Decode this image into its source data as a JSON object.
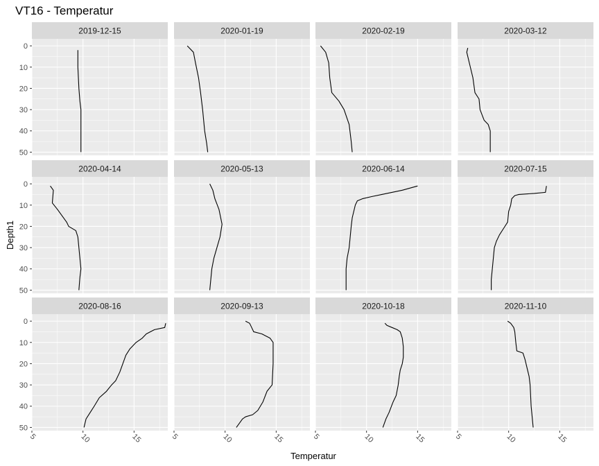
{
  "chart_data": {
    "type": "line",
    "title": "VT16  -  Temperatur",
    "xlabel": "Temperatur",
    "ylabel": "Depth1",
    "xlim": [
      5,
      18.3
    ],
    "ylim": [
      51.5,
      -3.3
    ],
    "y_reversed": true,
    "x_ticks": [
      5,
      10,
      15
    ],
    "x_tick_labels": [
      "5",
      "10",
      "15"
    ],
    "y_ticks": [
      0,
      10,
      20,
      30,
      40,
      50
    ],
    "y_tick_labels": [
      "0",
      "10",
      "20",
      "30",
      "40",
      "50"
    ],
    "grid": true,
    "legend": "none",
    "layout": {
      "rows": 3,
      "cols": 4
    },
    "panels": [
      {
        "label": "2019-12-15",
        "series": [
          {
            "points": [
              [
                9.5,
                2
              ],
              [
                9.5,
                10
              ],
              [
                9.6,
                20
              ],
              [
                9.7,
                26
              ],
              [
                9.8,
                30
              ],
              [
                9.8,
                40
              ],
              [
                9.8,
                50
              ]
            ]
          }
        ]
      },
      {
        "label": "2020-01-19",
        "series": [
          {
            "points": [
              [
                6.3,
                0
              ],
              [
                6.9,
                3
              ],
              [
                7.1,
                8
              ],
              [
                7.4,
                15
              ],
              [
                7.6,
                22
              ],
              [
                7.8,
                30
              ],
              [
                8.0,
                40
              ],
              [
                8.2,
                46
              ],
              [
                8.3,
                50
              ]
            ]
          }
        ]
      },
      {
        "label": "2020-02-19",
        "series": [
          {
            "points": [
              [
                5.5,
                0
              ],
              [
                6.0,
                3
              ],
              [
                6.3,
                8
              ],
              [
                6.4,
                15
              ],
              [
                6.6,
                22
              ],
              [
                7.3,
                26
              ],
              [
                7.8,
                30
              ],
              [
                8.3,
                37
              ],
              [
                8.5,
                45
              ],
              [
                8.6,
                50
              ]
            ]
          }
        ]
      },
      {
        "label": "2020-03-12",
        "series": [
          {
            "points": [
              [
                6.0,
                1
              ],
              [
                5.9,
                3
              ],
              [
                6.2,
                9
              ],
              [
                6.5,
                15
              ],
              [
                6.7,
                22
              ],
              [
                7.1,
                25
              ],
              [
                7.2,
                30
              ],
              [
                7.6,
                35
              ],
              [
                8.0,
                37
              ],
              [
                8.2,
                40
              ],
              [
                8.2,
                45
              ],
              [
                8.2,
                50
              ]
            ]
          }
        ]
      },
      {
        "label": "2020-04-14",
        "series": [
          {
            "points": [
              [
                6.8,
                1
              ],
              [
                7.1,
                3
              ],
              [
                7.0,
                9
              ],
              [
                7.5,
                12
              ],
              [
                8.4,
                18
              ],
              [
                8.6,
                20
              ],
              [
                9.3,
                22
              ],
              [
                9.5,
                25
              ],
              [
                9.6,
                30
              ],
              [
                9.7,
                35
              ],
              [
                9.8,
                40
              ],
              [
                9.7,
                44
              ],
              [
                9.6,
                50
              ]
            ]
          }
        ]
      },
      {
        "label": "2020-05-13",
        "series": [
          {
            "points": [
              [
                8.5,
                0
              ],
              [
                8.8,
                3
              ],
              [
                9.0,
                7
              ],
              [
                9.4,
                12
              ],
              [
                9.7,
                19
              ],
              [
                9.5,
                25
              ],
              [
                9.2,
                30
              ],
              [
                8.9,
                35
              ],
              [
                8.7,
                40
              ],
              [
                8.6,
                45
              ],
              [
                8.5,
                50
              ]
            ]
          }
        ]
      },
      {
        "label": "2020-06-14",
        "series": [
          {
            "points": [
              [
                15.0,
                1
              ],
              [
                13.5,
                3
              ],
              [
                11.5,
                5
              ],
              [
                10.5,
                6
              ],
              [
                9.6,
                7
              ],
              [
                9.1,
                8
              ],
              [
                8.9,
                10
              ],
              [
                8.8,
                12
              ],
              [
                8.6,
                16
              ],
              [
                8.5,
                20
              ],
              [
                8.3,
                30
              ],
              [
                8.1,
                35
              ],
              [
                8.0,
                40
              ],
              [
                8.0,
                50
              ]
            ]
          }
        ]
      },
      {
        "label": "2020-07-15",
        "series": [
          {
            "points": [
              [
                13.7,
                1
              ],
              [
                13.6,
                4
              ],
              [
                12.5,
                4.5
              ],
              [
                11.0,
                5
              ],
              [
                10.6,
                5.5
              ],
              [
                10.3,
                7
              ],
              [
                10.2,
                10
              ],
              [
                10.0,
                13
              ],
              [
                9.9,
                18
              ],
              [
                9.5,
                21
              ],
              [
                9.1,
                24
              ],
              [
                8.8,
                27
              ],
              [
                8.6,
                30
              ],
              [
                8.5,
                35
              ],
              [
                8.4,
                40
              ],
              [
                8.3,
                45
              ],
              [
                8.3,
                50
              ]
            ]
          }
        ]
      },
      {
        "label": "2020-08-16",
        "series": [
          {
            "points": [
              [
                18.1,
                1
              ],
              [
                18.0,
                3
              ],
              [
                17.0,
                4
              ],
              [
                16.2,
                6
              ],
              [
                15.8,
                8
              ],
              [
                15.2,
                10
              ],
              [
                14.6,
                13
              ],
              [
                14.2,
                16
              ],
              [
                13.9,
                20
              ],
              [
                13.6,
                24
              ],
              [
                13.2,
                28
              ],
              [
                12.8,
                30
              ],
              [
                12.3,
                33
              ],
              [
                11.6,
                36
              ],
              [
                11.1,
                40
              ],
              [
                10.7,
                43
              ],
              [
                10.3,
                46
              ],
              [
                10.1,
                50
              ]
            ]
          }
        ]
      },
      {
        "label": "2020-09-13",
        "series": [
          {
            "points": [
              [
                12.0,
                0
              ],
              [
                12.4,
                1
              ],
              [
                12.6,
                3
              ],
              [
                12.8,
                5
              ],
              [
                13.6,
                6
              ],
              [
                14.4,
                8
              ],
              [
                14.7,
                10
              ],
              [
                14.7,
                20
              ],
              [
                14.6,
                30
              ],
              [
                14.1,
                33
              ],
              [
                13.7,
                38
              ],
              [
                13.2,
                42
              ],
              [
                12.7,
                44
              ],
              [
                12.0,
                45
              ],
              [
                11.7,
                46
              ],
              [
                11.4,
                48
              ],
              [
                11.1,
                50
              ]
            ]
          }
        ]
      },
      {
        "label": "2020-10-18",
        "series": [
          {
            "points": [
              [
                11.8,
                1
              ],
              [
                12.0,
                2
              ],
              [
                12.5,
                3
              ],
              [
                13.0,
                4
              ],
              [
                13.3,
                5
              ],
              [
                13.5,
                8
              ],
              [
                13.6,
                12
              ],
              [
                13.6,
                17
              ],
              [
                13.5,
                20
              ],
              [
                13.3,
                23
              ],
              [
                13.2,
                26
              ],
              [
                13.1,
                30
              ],
              [
                12.9,
                35
              ],
              [
                12.6,
                38
              ],
              [
                12.2,
                43
              ],
              [
                11.9,
                46
              ],
              [
                11.6,
                50
              ]
            ]
          }
        ]
      },
      {
        "label": "2020-11-10",
        "series": [
          {
            "points": [
              [
                9.9,
                0
              ],
              [
                10.2,
                1
              ],
              [
                10.5,
                3
              ],
              [
                10.6,
                5
              ],
              [
                10.7,
                10
              ],
              [
                10.8,
                14
              ],
              [
                11.4,
                15
              ],
              [
                11.6,
                18
              ],
              [
                11.8,
                22
              ],
              [
                12.0,
                26
              ],
              [
                12.1,
                30
              ],
              [
                12.2,
                40
              ],
              [
                12.3,
                45
              ],
              [
                12.4,
                50
              ]
            ]
          }
        ]
      }
    ]
  },
  "colors": {
    "background": "#ffffff",
    "panel_bg": "#ebebeb",
    "strip_bg": "#d9d9d9",
    "grid_major": "#ffffff",
    "tick_text": "#4d4d4d",
    "line": "#000000"
  }
}
